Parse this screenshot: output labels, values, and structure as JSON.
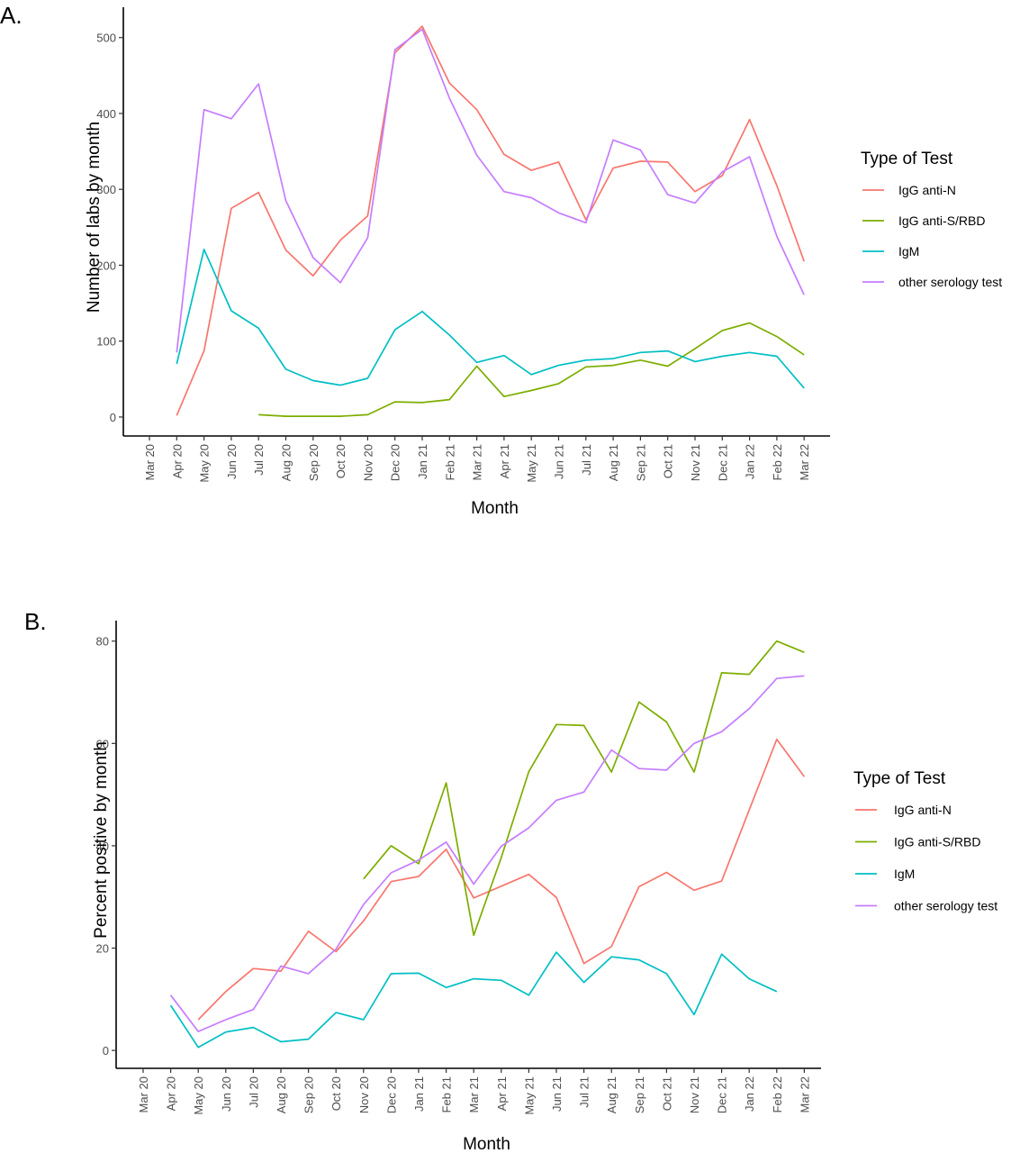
{
  "chart_data": [
    {
      "panel_label": "A.",
      "type": "line",
      "xlabel": "Month",
      "ylabel": "Number of labs by month",
      "ylim": [
        -25,
        540
      ],
      "yticks": [
        0,
        100,
        200,
        300,
        400,
        500
      ],
      "categories": [
        "Mar 20",
        "Apr 20",
        "May 20",
        "Jun 20",
        "Jul 20",
        "Aug 20",
        "Sep 20",
        "Oct 20",
        "Nov 20",
        "Dec 20",
        "Jan 21",
        "Feb 21",
        "Mar 21",
        "Apr 21",
        "May 21",
        "Jun 21",
        "Jul 21",
        "Aug 21",
        "Sep 21",
        "Oct 21",
        "Nov 21",
        "Dec 21",
        "Jan 22",
        "Feb 22",
        "Mar 22"
      ],
      "legend_title": "Type of Test",
      "legend_position": "right",
      "grid": false,
      "series": [
        {
          "name": "IgG anti-N",
          "color": "#F8766D",
          "values": [
            null,
            2,
            87,
            275,
            296,
            220,
            186,
            233,
            265,
            480,
            515,
            440,
            405,
            346,
            325,
            336,
            260,
            328,
            337,
            336,
            297,
            318,
            392,
            305,
            205
          ]
        },
        {
          "name": "IgG anti-S/RBD",
          "color": "#7CAE00",
          "values": [
            null,
            null,
            null,
            null,
            3,
            1,
            1,
            1,
            3,
            20,
            19,
            23,
            67,
            27,
            35,
            44,
            66,
            68,
            75,
            67,
            90,
            114,
            124,
            106,
            82
          ]
        },
        {
          "name": "IgM",
          "color": "#00BFC4",
          "values": [
            null,
            70,
            221,
            140,
            117,
            63,
            48,
            42,
            51,
            115,
            139,
            108,
            72,
            81,
            56,
            68,
            75,
            77,
            85,
            87,
            73,
            80,
            85,
            80,
            38
          ]
        },
        {
          "name": "other serology test",
          "color": "#C77CFF",
          "values": [
            null,
            85,
            405,
            393,
            439,
            285,
            210,
            177,
            236,
            484,
            511,
            420,
            345,
            297,
            289,
            269,
            256,
            365,
            352,
            293,
            282,
            323,
            343,
            238,
            161
          ]
        }
      ]
    },
    {
      "panel_label": "B.",
      "type": "line",
      "xlabel": "Month",
      "ylabel": "Percent positive by month",
      "ylim": [
        -3.5,
        84
      ],
      "yticks": [
        0,
        20,
        40,
        60,
        80
      ],
      "categories": [
        "Mar 20",
        "Apr 20",
        "May 20",
        "Jun 20",
        "Jul 20",
        "Aug 20",
        "Sep 20",
        "Oct 20",
        "Nov 20",
        "Dec 20",
        "Jan 21",
        "Feb 21",
        "Mar 21",
        "Apr 21",
        "May 21",
        "Jun 21",
        "Jul 21",
        "Aug 21",
        "Sep 21",
        "Oct 21",
        "Nov 21",
        "Dec 21",
        "Jan 22",
        "Feb 22",
        "Mar 22"
      ],
      "legend_title": "Type of Test",
      "legend_position": "right",
      "grid": false,
      "series": [
        {
          "name": "IgG anti-N",
          "color": "#F8766D",
          "values": [
            null,
            null,
            6,
            11.5,
            16,
            15.5,
            23.3,
            19.3,
            25.3,
            33,
            34,
            39.3,
            29.8,
            32.1,
            34.4,
            29.9,
            17,
            20.3,
            32,
            34.8,
            31.3,
            33.1,
            47,
            60.8,
            53.5
          ]
        },
        {
          "name": "IgG anti-S/RBD",
          "color": "#7CAE00",
          "values": [
            null,
            null,
            null,
            null,
            null,
            null,
            null,
            null,
            33.5,
            40,
            36.5,
            52.3,
            22.5,
            37.7,
            54.5,
            63.7,
            63.5,
            54.4,
            68.1,
            64.2,
            54.4,
            73.8,
            73.5,
            80,
            77.8
          ]
        },
        {
          "name": "IgM",
          "color": "#00BFC4",
          "values": [
            null,
            8.8,
            0.6,
            3.6,
            4.5,
            1.7,
            2.2,
            7.4,
            6,
            15,
            15.1,
            12.3,
            14,
            13.7,
            10.8,
            19.2,
            13.3,
            18.3,
            17.7,
            15,
            7,
            18.8,
            14,
            11.5,
            null
          ]
        },
        {
          "name": "other serology test",
          "color": "#C77CFF",
          "values": [
            null,
            10.8,
            3.7,
            6,
            8,
            16.5,
            15,
            19.8,
            28.5,
            34.7,
            37.2,
            40.7,
            32.5,
            39.9,
            43.5,
            48.9,
            50.5,
            58.7,
            55.1,
            54.8,
            60,
            62.3,
            66.8,
            72.7,
            73.2
          ]
        }
      ]
    }
  ]
}
